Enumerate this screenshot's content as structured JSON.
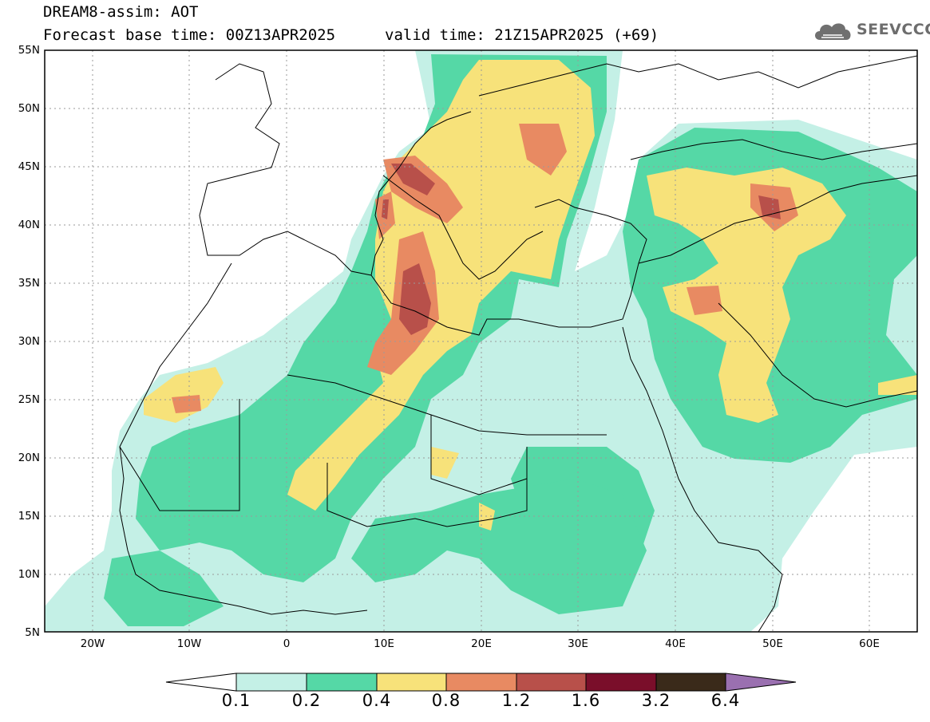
{
  "header": {
    "title_line1": "DREAM8-assim: AOT",
    "title_line2": "Forecast base time: 00Z13APR2025",
    "valid_time": "valid time: 21Z15APR2025 (+69)",
    "logo_text": "SEEVCCC"
  },
  "map": {
    "lat_labels": [
      "55N",
      "50N",
      "45N",
      "40N",
      "35N",
      "30N",
      "25N",
      "20N",
      "15N",
      "10N",
      "5N"
    ],
    "lon_labels": [
      "20W",
      "10W",
      "0",
      "10E",
      "20E",
      "30E",
      "40E",
      "50E",
      "60E"
    ],
    "grid": true
  },
  "colorbar": {
    "labels": [
      "0.1",
      "0.2",
      "0.4",
      "0.8",
      "1.2",
      "1.6",
      "3.2",
      "6.4"
    ],
    "colors": [
      "#c4f0e6",
      "#55d8a6",
      "#f7e27a",
      "#e88a62",
      "#b8504a",
      "#7a0e2a",
      "#3a2a1a",
      "#9a70b0"
    ]
  }
}
